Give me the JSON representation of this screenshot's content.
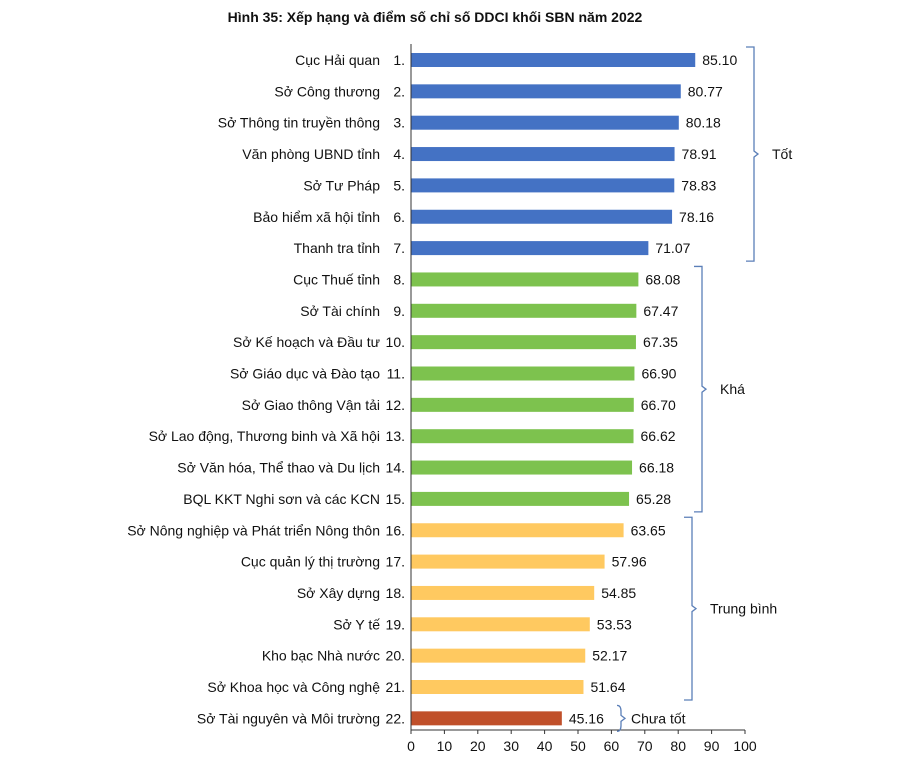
{
  "chart_data": {
    "type": "bar",
    "orientation": "horizontal",
    "title": "Hình 35: Xếp hạng và điểm số chỉ số DDCI khối SBN năm 2022",
    "xlim": [
      0,
      100
    ],
    "xticks": [
      "0",
      "10",
      "20",
      "30",
      "40",
      "50",
      "60",
      "70",
      "80",
      "90",
      "100"
    ],
    "grid": false,
    "legend": "none",
    "categories": [
      "Cục Hải quan",
      "Sở Công thương",
      "Sở Thông tin truyền thông",
      "Văn phòng UBND tỉnh",
      "Sở Tư Pháp",
      "Bảo hiểm xã hội tỉnh",
      "Thanh tra tỉnh",
      "Cục Thuế tỉnh",
      "Sở Tài chính",
      "Sở Kế hoạch và Đầu tư",
      "Sở Giáo dục và Đào tạo",
      "Sở Giao thông Vận tải",
      "Sở Lao động, Thương binh và Xã hội",
      "Sở Văn hóa, Thể thao và Du lịch",
      "BQL KKT Nghi sơn và các KCN",
      "Sở Nông nghiệp và Phát triển  Nông thôn",
      "Cục quản lý thị trường",
      "Sở Xây dựng",
      "Sở Y tế",
      "Kho bạc Nhà nước",
      "Sở Khoa học và Công nghệ",
      "Sở Tài nguyên và Môi trường"
    ],
    "ranks": [
      "1.",
      "2.",
      "3.",
      "4.",
      "5.",
      "6.",
      "7.",
      "8.",
      "9.",
      "10.",
      "11.",
      "12.",
      "13.",
      "14.",
      "15.",
      "16.",
      "17.",
      "18.",
      "19.",
      "20.",
      "21.",
      "22."
    ],
    "values": [
      85.1,
      80.77,
      80.18,
      78.91,
      78.83,
      78.16,
      71.07,
      68.08,
      67.47,
      67.35,
      66.9,
      66.7,
      66.62,
      66.18,
      65.28,
      63.65,
      57.96,
      54.85,
      53.53,
      52.17,
      51.64,
      45.16
    ],
    "value_labels": [
      "85.10",
      "80.77",
      "80.18",
      "78.91",
      "78.83",
      "78.16",
      "71.07",
      "68.08",
      "67.47",
      "67.35",
      "66.90",
      "66.70",
      "66.62",
      "66.18",
      "65.28",
      "63.65",
      "57.96",
      "54.85",
      "53.53",
      "52.17",
      "51.64",
      "45.16"
    ],
    "groups": [
      {
        "label": "Tốt",
        "start": 0,
        "end": 6,
        "color": "#4472c4"
      },
      {
        "label": "Khá",
        "start": 7,
        "end": 14,
        "color": "#7dc24e"
      },
      {
        "label": "Trung bình",
        "start": 15,
        "end": 20,
        "color": "#ffc960"
      },
      {
        "label": "Chưa tốt",
        "start": 21,
        "end": 21,
        "color": "#c0502a"
      }
    ]
  }
}
